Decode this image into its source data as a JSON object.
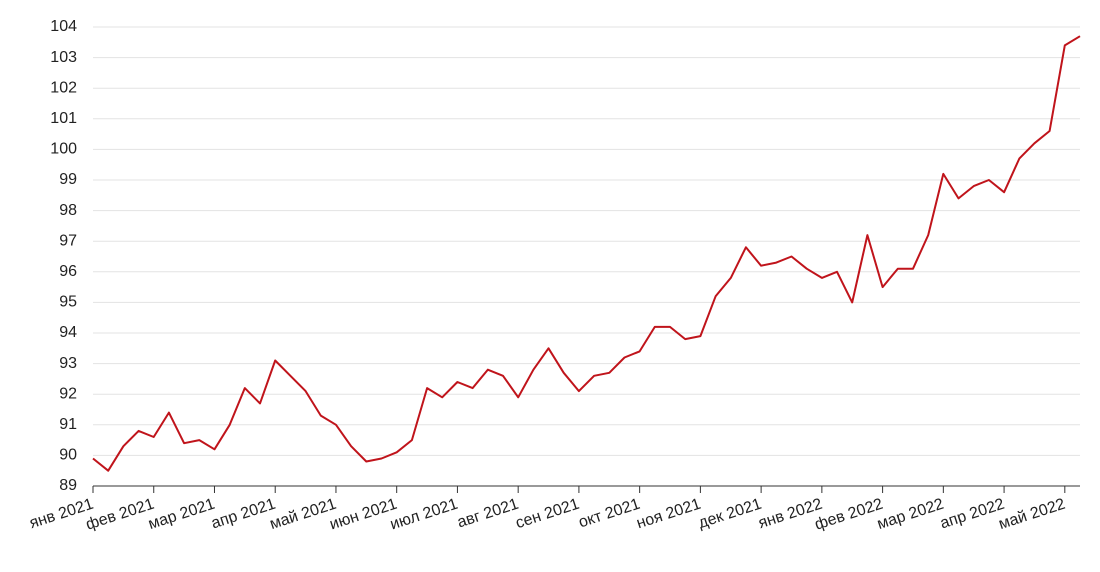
{
  "chart_data": {
    "type": "line",
    "categories": [
      "янв 2021",
      null,
      null,
      null,
      "фев 2021",
      null,
      null,
      null,
      "мар 2021",
      null,
      null,
      null,
      "апр 2021",
      null,
      null,
      null,
      "май 2021",
      null,
      null,
      null,
      "июн 2021",
      null,
      null,
      null,
      "июл 2021",
      null,
      null,
      null,
      "авг 2021",
      null,
      null,
      null,
      "сен 2021",
      null,
      null,
      null,
      "окт 2021",
      null,
      null,
      null,
      "ноя 2021",
      null,
      null,
      null,
      "дек 2021",
      null,
      null,
      null,
      "янв 2022",
      null,
      null,
      null,
      "фев 2022",
      null,
      null,
      null,
      "мар 2022",
      null,
      null,
      null,
      "апр 2022",
      null,
      null,
      null,
      "май 2022",
      null
    ],
    "values": [
      89.9,
      89.5,
      90.3,
      90.8,
      90.6,
      91.4,
      90.4,
      90.5,
      90.2,
      91.0,
      92.2,
      91.7,
      93.1,
      92.6,
      92.1,
      91.3,
      91.0,
      90.3,
      89.8,
      89.9,
      90.1,
      90.5,
      92.2,
      91.9,
      92.4,
      92.2,
      92.8,
      92.6,
      91.9,
      92.8,
      93.5,
      92.7,
      92.1,
      92.6,
      92.7,
      93.2,
      93.4,
      94.2,
      94.2,
      93.8,
      93.9,
      95.2,
      95.8,
      96.8,
      96.2,
      96.3,
      96.5,
      96.1,
      95.8,
      96.0,
      95.0,
      97.2,
      95.5,
      96.1,
      96.1,
      97.2,
      99.2,
      98.4,
      98.8,
      99.0,
      98.6,
      99.7,
      100.2,
      100.6,
      103.4,
      103.7
    ],
    "color": "#c0141b",
    "ylim": [
      89,
      104
    ],
    "yticks": [
      89,
      90,
      91,
      92,
      93,
      94,
      95,
      96,
      97,
      98,
      99,
      100,
      101,
      102,
      103,
      104
    ],
    "grid": true
  }
}
